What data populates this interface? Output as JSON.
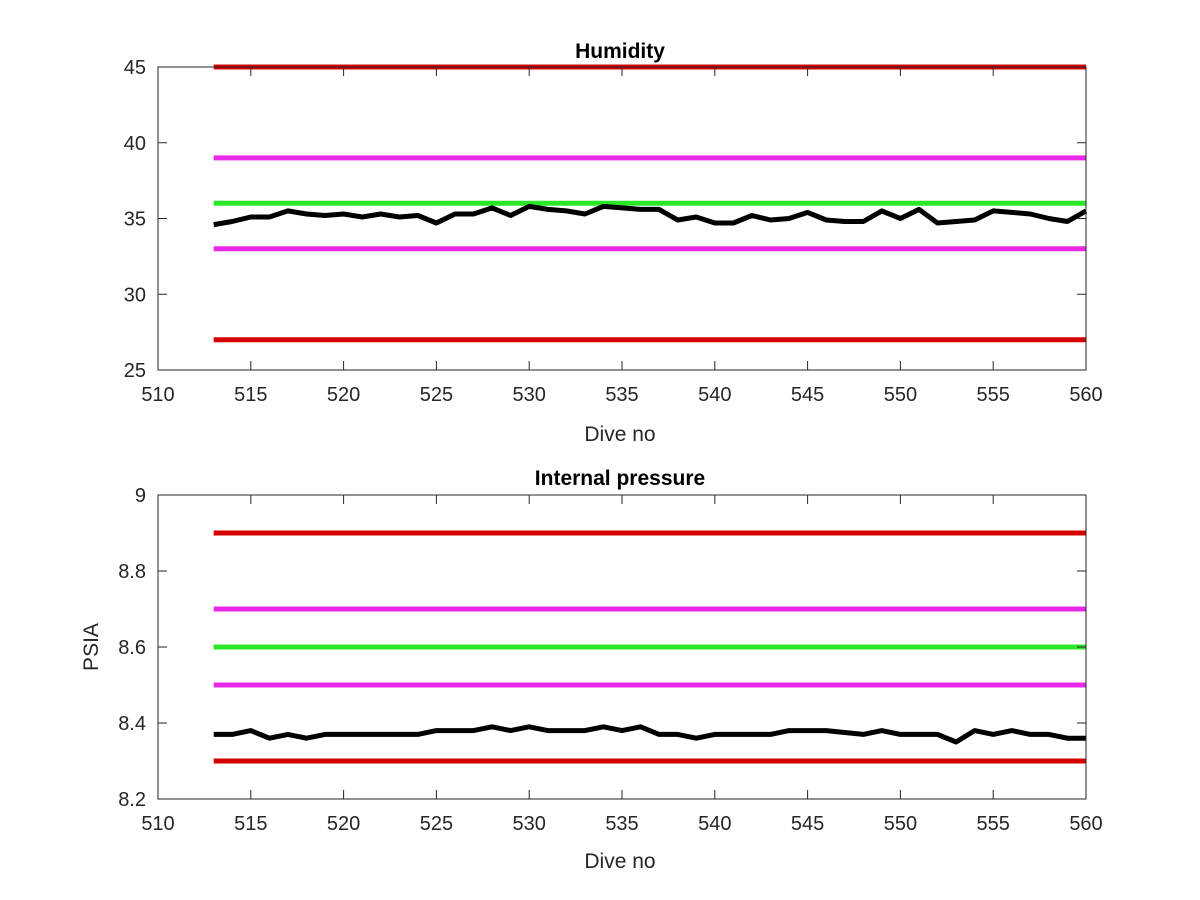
{
  "chart_data": [
    {
      "type": "line",
      "title": "Humidity",
      "xlabel": "Dive no",
      "ylabel": "",
      "xlim": [
        510,
        560
      ],
      "ylim": [
        25,
        45
      ],
      "xticks": [
        510,
        515,
        520,
        525,
        530,
        535,
        540,
        545,
        550,
        555,
        560
      ],
      "yticks": [
        25,
        30,
        35,
        40,
        45
      ],
      "grid": false,
      "series": [
        {
          "color": "#d40000",
          "x": [
            513,
            560
          ],
          "y": [
            45,
            45
          ]
        },
        {
          "color": "#ea28ea",
          "x": [
            513,
            560
          ],
          "y": [
            39,
            39
          ]
        },
        {
          "color": "#28e828",
          "x": [
            513,
            560
          ],
          "y": [
            36,
            36
          ]
        },
        {
          "color": "#ea28ea",
          "x": [
            513,
            560
          ],
          "y": [
            33,
            33
          ]
        },
        {
          "color": "#d40000",
          "x": [
            513,
            560
          ],
          "y": [
            27,
            27
          ]
        },
        {
          "color": "#000000",
          "x": [
            513,
            514,
            515,
            516,
            517,
            518,
            519,
            520,
            521,
            522,
            523,
            524,
            525,
            526,
            527,
            528,
            529,
            530,
            531,
            532,
            533,
            534,
            535,
            536,
            537,
            538,
            539,
            540,
            541,
            542,
            543,
            544,
            545,
            546,
            547,
            548,
            549,
            550,
            551,
            552,
            553,
            554,
            555,
            556,
            557,
            558,
            559,
            560
          ],
          "y": [
            34.6,
            34.8,
            35.1,
            35.1,
            35.5,
            35.3,
            35.2,
            35.3,
            35.1,
            35.3,
            35.1,
            35.2,
            34.7,
            35.3,
            35.3,
            35.7,
            35.2,
            35.8,
            35.6,
            35.5,
            35.3,
            35.8,
            35.7,
            35.6,
            35.6,
            34.9,
            35.1,
            34.7,
            34.7,
            35.2,
            34.9,
            35.0,
            35.4,
            34.9,
            34.8,
            34.8,
            35.5,
            35.0,
            35.6,
            34.7,
            34.8,
            34.9,
            35.5,
            35.4,
            35.3,
            35.0,
            34.8,
            35.5
          ]
        }
      ]
    },
    {
      "type": "line",
      "title": "Internal pressure",
      "xlabel": "Dive no",
      "ylabel": "PSIA",
      "xlim": [
        510,
        560
      ],
      "ylim": [
        8.2,
        9
      ],
      "xticks": [
        510,
        515,
        520,
        525,
        530,
        535,
        540,
        545,
        550,
        555,
        560
      ],
      "yticks": [
        8.2,
        8.4,
        8.6,
        8.8,
        9
      ],
      "grid": false,
      "series": [
        {
          "color": "#d40000",
          "x": [
            513,
            560
          ],
          "y": [
            8.9,
            8.9
          ]
        },
        {
          "color": "#ea28ea",
          "x": [
            513,
            560
          ],
          "y": [
            8.7,
            8.7
          ]
        },
        {
          "color": "#28e828",
          "x": [
            513,
            560
          ],
          "y": [
            8.6,
            8.6
          ]
        },
        {
          "color": "#ea28ea",
          "x": [
            513,
            560
          ],
          "y": [
            8.5,
            8.5
          ]
        },
        {
          "color": "#d40000",
          "x": [
            513,
            560
          ],
          "y": [
            8.3,
            8.3
          ]
        },
        {
          "color": "#000000",
          "x": [
            513,
            514,
            515,
            516,
            517,
            518,
            519,
            520,
            521,
            522,
            523,
            524,
            525,
            526,
            527,
            528,
            529,
            530,
            531,
            532,
            533,
            534,
            535,
            536,
            537,
            538,
            539,
            540,
            541,
            542,
            543,
            544,
            545,
            546,
            547,
            548,
            549,
            550,
            551,
            552,
            553,
            554,
            555,
            556,
            557,
            558,
            559,
            560
          ],
          "y": [
            8.37,
            8.37,
            8.38,
            8.36,
            8.37,
            8.36,
            8.37,
            8.37,
            8.37,
            8.37,
            8.37,
            8.37,
            8.38,
            8.38,
            8.38,
            8.39,
            8.38,
            8.39,
            8.38,
            8.38,
            8.38,
            8.39,
            8.38,
            8.39,
            8.37,
            8.37,
            8.36,
            8.37,
            8.37,
            8.37,
            8.37,
            8.38,
            8.38,
            8.38,
            8.375,
            8.37,
            8.38,
            8.37,
            8.37,
            8.37,
            8.35,
            8.38,
            8.37,
            8.38,
            8.37,
            8.37,
            8.36,
            8.36
          ]
        }
      ]
    }
  ]
}
